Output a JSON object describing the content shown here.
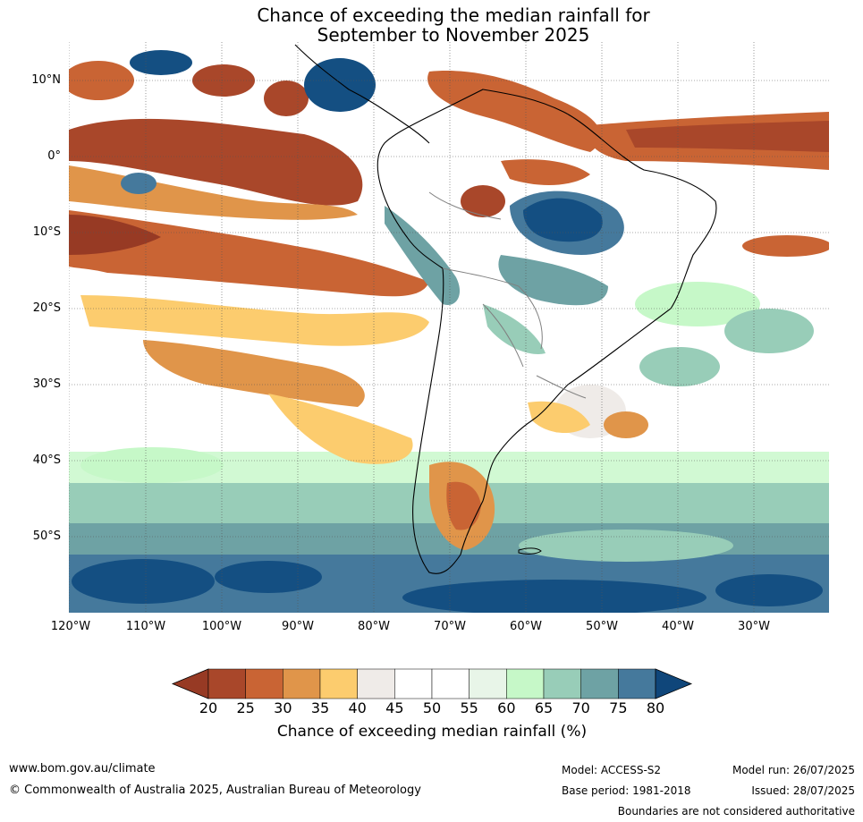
{
  "title_line1": "Chance of exceeding the median rainfall for",
  "title_line2": "September to November 2025",
  "lat_labels": [
    "10°N",
    "0°",
    "10°S",
    "20°S",
    "30°S",
    "40°S",
    "50°S"
  ],
  "lon_labels": [
    "120°W",
    "110°W",
    "100°W",
    "90°W",
    "80°W",
    "70°W",
    "60°W",
    "50°W",
    "40°W",
    "30°W"
  ],
  "colorbar": {
    "label": "Chance of exceeding median rainfall (%)",
    "ticks": [
      "20",
      "25",
      "30",
      "35",
      "40",
      "45",
      "50",
      "55",
      "60",
      "65",
      "70",
      "75",
      "80"
    ],
    "colors": [
      "#a9472a",
      "#c96434",
      "#e0954a",
      "#fccc6e",
      "#efebe8",
      "#ffffff",
      "#ffffff",
      "#e8f5e8",
      "#c6f8c8",
      "#98cdb8",
      "#6ea2a4",
      "#45799c",
      "#144f82"
    ],
    "low_color": "#973a24",
    "high_color": "#0f467a"
  },
  "footer": {
    "website": "www.bom.gov.au/climate",
    "copyright": "© Commonwealth of Australia 2025, Australian Bureau of Meteorology",
    "model": "Model: ACCESS-S2",
    "base_period": "Base period: 1981-2018",
    "model_run": "Model run: 26/07/2025",
    "issued": "Issued: 28/07/2025",
    "disclaimer": "Boundaries are not considered authoritative"
  }
}
